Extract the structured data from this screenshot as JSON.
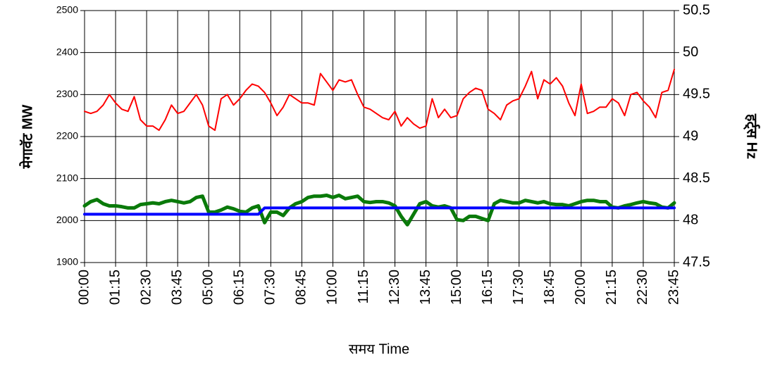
{
  "chart_data": {
    "type": "line",
    "y_label": "मेगावॅट  MW",
    "y2_label": "हर्ट्स Hz",
    "x_label": "समय   Time",
    "categories": [
      "00:00",
      null,
      null,
      null,
      null,
      "01:15",
      null,
      null,
      null,
      null,
      "02:30",
      null,
      null,
      null,
      null,
      "03:45",
      null,
      null,
      null,
      null,
      "05:00",
      null,
      null,
      null,
      null,
      "06:15",
      null,
      null,
      null,
      null,
      "07:30",
      null,
      null,
      null,
      null,
      "08:45",
      null,
      null,
      null,
      null,
      "10:00",
      null,
      null,
      null,
      null,
      "11:15",
      null,
      null,
      null,
      null,
      "12:30",
      null,
      null,
      null,
      null,
      "13:45",
      null,
      null,
      null,
      null,
      "15:00",
      null,
      null,
      null,
      null,
      "16:15",
      null,
      null,
      null,
      null,
      "17:30",
      null,
      null,
      null,
      null,
      "18:45",
      null,
      null,
      null,
      null,
      "20:00",
      null,
      null,
      null,
      null,
      "21:15",
      null,
      null,
      null,
      null,
      "22:30",
      null,
      null,
      null,
      null,
      "23:45"
    ],
    "series": [
      {
        "color": "#ff0000",
        "width": 2,
        "values": [
          2260,
          2255,
          2260,
          2275,
          2300,
          2280,
          2265,
          2260,
          2295,
          2240,
          2225,
          2225,
          2215,
          2240,
          2275,
          2255,
          2260,
          2280,
          2300,
          2275,
          2225,
          2215,
          2290,
          2300,
          2275,
          2290,
          2310,
          2325,
          2320,
          2305,
          2280,
          2250,
          2270,
          2300,
          2290,
          2280,
          2280,
          2275,
          2350,
          2330,
          2310,
          2335,
          2330,
          2335,
          2300,
          2270,
          2265,
          2255,
          2245,
          2240,
          2260,
          2225,
          2245,
          2230,
          2220,
          2225,
          2290,
          2245,
          2265,
          2245,
          2250,
          2290,
          2305,
          2315,
          2310,
          2265,
          2255,
          2240,
          2275,
          2285,
          2290,
          2320,
          2355,
          2290,
          2335,
          2325,
          2340,
          2320,
          2280,
          2250,
          2325,
          2255,
          2260,
          2270,
          2270,
          2290,
          2280,
          2250,
          2300,
          2305,
          2285,
          2270,
          2245,
          2305,
          2310,
          2360
        ]
      },
      {
        "color": "#0a7a0a",
        "width": 5,
        "values": [
          2035,
          2045,
          2050,
          2040,
          2035,
          2035,
          2033,
          2030,
          2030,
          2038,
          2040,
          2042,
          2040,
          2045,
          2048,
          2045,
          2042,
          2045,
          2055,
          2058,
          2020,
          2020,
          2025,
          2032,
          2028,
          2022,
          2020,
          2030,
          2035,
          1995,
          2020,
          2020,
          2012,
          2030,
          2040,
          2045,
          2055,
          2058,
          2058,
          2060,
          2055,
          2060,
          2052,
          2055,
          2058,
          2045,
          2043,
          2045,
          2045,
          2042,
          2035,
          2010,
          1990,
          2015,
          2040,
          2045,
          2035,
          2032,
          2035,
          2030,
          2002,
          2000,
          2010,
          2010,
          2005,
          2000,
          2040,
          2048,
          2045,
          2042,
          2042,
          2048,
          2045,
          2042,
          2045,
          2040,
          2038,
          2038,
          2035,
          2040,
          2045,
          2048,
          2048,
          2045,
          2045,
          2032,
          2030,
          2035,
          2038,
          2042,
          2045,
          2042,
          2040,
          2032,
          2030,
          2042
        ]
      },
      {
        "color": "#0000ff",
        "width": 4,
        "values": [
          2015,
          2015,
          2015,
          2015,
          2015,
          2015,
          2015,
          2015,
          2015,
          2015,
          2015,
          2015,
          2015,
          2015,
          2015,
          2015,
          2015,
          2015,
          2015,
          2015,
          2015,
          2015,
          2015,
          2015,
          2015,
          2015,
          2015,
          2015,
          2015,
          2030,
          2030,
          2030,
          2030,
          2030,
          2030,
          2030,
          2030,
          2030,
          2030,
          2030,
          2030,
          2030,
          2030,
          2030,
          2030,
          2030,
          2030,
          2030,
          2030,
          2030,
          2030,
          2030,
          2030,
          2030,
          2030,
          2030,
          2030,
          2030,
          2030,
          2030,
          2030,
          2030,
          2030,
          2030,
          2030,
          2030,
          2030,
          2030,
          2030,
          2030,
          2030,
          2030,
          2030,
          2030,
          2030,
          2030,
          2030,
          2030,
          2030,
          2030,
          2030,
          2030,
          2030,
          2030,
          2030,
          2030,
          2030,
          2030,
          2030,
          2030,
          2030,
          2030,
          2030,
          2030,
          2030,
          2030
        ]
      }
    ],
    "ylim": [
      1900,
      2500
    ],
    "yticks": [
      1900,
      2000,
      2100,
      2200,
      2300,
      2400,
      2500
    ],
    "y2lim": [
      47.5,
      50.5
    ],
    "y2ticks": [
      47.5,
      48,
      48.5,
      49,
      49.5,
      50,
      50.5
    ],
    "grid": true
  }
}
